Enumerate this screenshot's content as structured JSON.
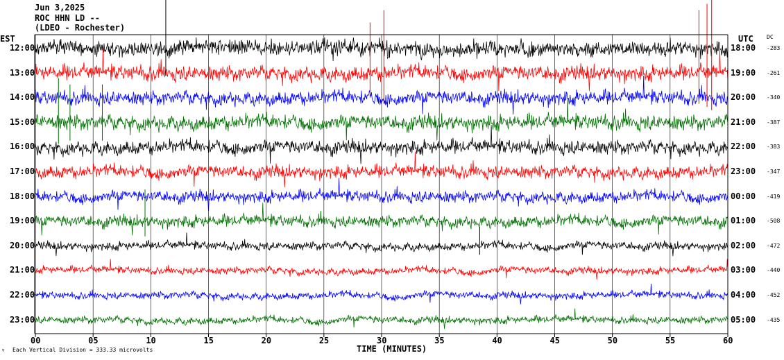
{
  "header": {
    "date": "Jun 3,2025",
    "station": "ROC HHN LD --",
    "network": "(LDEO - Rochester)"
  },
  "labels": {
    "left_zone": "EST",
    "right_zone": "UTC",
    "dc": "DC",
    "xlabel": "TIME (MINUTES)",
    "footer": "Each Vertical Division = 333.33 microvolts",
    "footer_glyph": "ᵍ"
  },
  "colors": {
    "black": "#000000",
    "red": "#ff0000",
    "blue": "#0000ff",
    "green": "#007000"
  },
  "chart_data": {
    "type": "line",
    "xlabel": "TIME (MINUTES)",
    "xlim": [
      0,
      60
    ],
    "xticks": [
      "00",
      "05",
      "10",
      "15",
      "20",
      "25",
      "30",
      "35",
      "40",
      "45",
      "50",
      "55",
      "60"
    ],
    "grid": "vertical lines every 5 minutes",
    "traces": [
      {
        "est": "12:00",
        "utc": "18:00",
        "dc": "-283",
        "color": "black",
        "amp": 1.3
      },
      {
        "est": "13:00",
        "utc": "19:00",
        "dc": "-261",
        "color": "red",
        "amp": 1.3
      },
      {
        "est": "14:00",
        "utc": "20:00",
        "dc": "-340",
        "color": "blue",
        "amp": 1.2
      },
      {
        "est": "15:00",
        "utc": "21:00",
        "dc": "-387",
        "color": "green",
        "amp": 1.3
      },
      {
        "est": "16:00",
        "utc": "22:00",
        "dc": "-383",
        "color": "black",
        "amp": 1.2
      },
      {
        "est": "17:00",
        "utc": "23:00",
        "dc": "-347",
        "color": "red",
        "amp": 1.1
      },
      {
        "est": "18:00",
        "utc": "00:00",
        "dc": "-419",
        "color": "blue",
        "amp": 1.0
      },
      {
        "est": "19:00",
        "utc": "01:00",
        "dc": "-508",
        "color": "green",
        "amp": 1.0
      },
      {
        "est": "20:00",
        "utc": "02:00",
        "dc": "-472",
        "color": "black",
        "amp": 0.7
      },
      {
        "est": "21:00",
        "utc": "03:00",
        "dc": "-440",
        "color": "red",
        "amp": 0.6
      },
      {
        "est": "22:00",
        "utc": "04:00",
        "dc": "-452",
        "color": "blue",
        "amp": 0.6
      },
      {
        "est": "23:00",
        "utc": "05:00",
        "dc": "-435",
        "color": "green",
        "amp": 0.6
      }
    ],
    "events": [
      {
        "trace": 0,
        "minute": 11.3,
        "height": 4.5
      },
      {
        "trace": 1,
        "minute": 29.0,
        "height": 4.0
      },
      {
        "trace": 1,
        "minute": 30.2,
        "height": 5.0
      },
      {
        "trace": 1,
        "minute": 57.5,
        "height": 5.0
      },
      {
        "trace": 1,
        "minute": 58.2,
        "height": 5.5
      },
      {
        "trace": 1,
        "minute": 58.6,
        "height": 6.0
      },
      {
        "trace": 3,
        "minute": 2.0,
        "height": 3.5
      },
      {
        "trace": 3,
        "minute": 3.0,
        "height": 3.0
      },
      {
        "trace": 3,
        "minute": 5.8,
        "height": 3.0
      },
      {
        "trace": 7,
        "minute": 9.5,
        "height": 2.5
      },
      {
        "trace": 8,
        "minute": 38.5,
        "height": 1.5
      }
    ]
  }
}
